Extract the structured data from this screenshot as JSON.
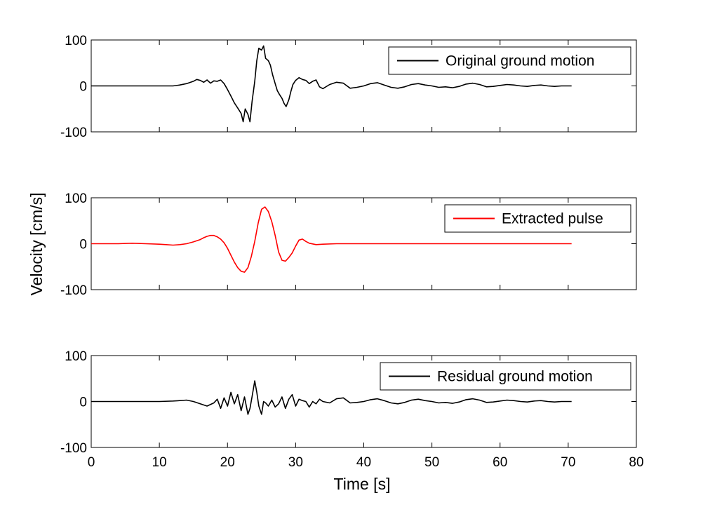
{
  "chart_data": [
    {
      "type": "line",
      "ylim": [
        -100,
        100
      ],
      "xlim": [
        0,
        80
      ],
      "yticks": [
        "100",
        "0",
        "-100"
      ],
      "series": [
        {
          "name": "Original ground motion",
          "color": "#000000",
          "x": [
            0,
            2,
            4,
            6,
            8,
            10,
            12,
            13,
            14,
            15,
            15.5,
            16,
            16.5,
            17,
            17.5,
            18,
            18.5,
            19,
            19.5,
            20,
            20.5,
            21,
            21.5,
            22,
            22.3,
            22.6,
            23,
            23.3,
            23.6,
            24,
            24.3,
            24.6,
            25,
            25.3,
            25.6,
            26,
            26.3,
            26.6,
            27,
            27.3,
            27.6,
            28,
            28.3,
            28.6,
            29,
            29.3,
            29.6,
            30,
            30.5,
            31,
            31.5,
            32,
            32.5,
            33,
            33.5,
            34,
            35,
            36,
            37,
            38,
            39,
            40,
            41,
            42,
            43,
            44,
            45,
            46,
            47,
            48,
            49,
            50,
            51,
            52,
            53,
            54,
            55,
            56,
            57,
            58,
            59,
            60,
            61,
            62,
            63,
            64,
            65,
            66,
            67,
            68,
            69,
            70,
            70.5
          ],
          "y": [
            0,
            0,
            0,
            0,
            0,
            0,
            0,
            2,
            5,
            10,
            14,
            12,
            8,
            13,
            6,
            11,
            10,
            13,
            5,
            -8,
            -22,
            -37,
            -48,
            -60,
            -78,
            -50,
            -62,
            -78,
            -35,
            10,
            55,
            82,
            78,
            87,
            60,
            55,
            45,
            25,
            5,
            -10,
            -18,
            -27,
            -38,
            -45,
            -30,
            -12,
            3,
            12,
            18,
            14,
            12,
            5,
            10,
            13,
            -2,
            -6,
            3,
            8,
            6,
            -5,
            -3,
            0,
            5,
            7,
            2,
            -3,
            -5,
            -2,
            3,
            5,
            2,
            0,
            -3,
            -2,
            -4,
            -1,
            4,
            6,
            3,
            -2,
            -1,
            1,
            3,
            2,
            0,
            -1,
            1,
            2,
            0,
            -1,
            0,
            0,
            0
          ]
        }
      ]
    },
    {
      "type": "line",
      "ylim": [
        -100,
        100
      ],
      "xlim": [
        0,
        80
      ],
      "yticks": [
        "100",
        "0",
        "-100"
      ],
      "ylabel": "Velocity [cm/s]",
      "series": [
        {
          "name": "Extracted pulse",
          "color": "#ff0000",
          "x": [
            0,
            2,
            4,
            6,
            8,
            10,
            11,
            12,
            13,
            14,
            15,
            16,
            16.5,
            17,
            17.5,
            18,
            18.5,
            19,
            19.5,
            20,
            20.5,
            21,
            21.5,
            22,
            22.5,
            23,
            23.5,
            24,
            24.5,
            25,
            25.5,
            26,
            26.5,
            27,
            27.5,
            28,
            28.5,
            29,
            29.5,
            30,
            30.5,
            31,
            31.5,
            32,
            33,
            34,
            36,
            40,
            50,
            60,
            70,
            70.5
          ],
          "y": [
            0,
            0,
            0,
            1,
            0,
            -1,
            -2,
            -3,
            -2,
            0,
            4,
            9,
            13,
            16,
            18,
            18,
            15,
            10,
            2,
            -10,
            -25,
            -40,
            -52,
            -60,
            -62,
            -52,
            -28,
            5,
            45,
            75,
            80,
            70,
            48,
            18,
            -18,
            -36,
            -38,
            -30,
            -20,
            -5,
            8,
            10,
            5,
            1,
            -2,
            -1,
            0,
            0,
            0,
            0,
            0,
            0
          ]
        }
      ]
    },
    {
      "type": "line",
      "ylim": [
        -100,
        100
      ],
      "xlim": [
        0,
        80
      ],
      "yticks": [
        "100",
        "0",
        "-100"
      ],
      "xticks": [
        "0",
        "10",
        "20",
        "30",
        "40",
        "50",
        "60",
        "70",
        "80"
      ],
      "xlabel": "Time [s]",
      "series": [
        {
          "name": "Residual ground motion",
          "color": "#000000",
          "x": [
            0,
            2,
            4,
            6,
            8,
            10,
            12,
            13,
            14,
            15,
            16,
            17,
            18,
            18.5,
            19,
            19.5,
            20,
            20.5,
            21,
            21.5,
            22,
            22.5,
            23,
            23.3,
            23.6,
            24,
            24.3,
            24.6,
            25,
            25.3,
            25.6,
            26,
            26.5,
            27,
            27.5,
            28,
            28.5,
            29,
            29.5,
            30,
            30.5,
            31,
            31.5,
            32,
            32.5,
            33,
            33.5,
            34,
            35,
            36,
            37,
            38,
            39,
            40,
            41,
            42,
            43,
            44,
            45,
            46,
            47,
            48,
            49,
            50,
            51,
            52,
            53,
            54,
            55,
            56,
            57,
            58,
            59,
            60,
            61,
            62,
            63,
            64,
            65,
            66,
            67,
            68,
            69,
            70,
            70.5
          ],
          "y": [
            0,
            0,
            0,
            0,
            0,
            0,
            1,
            2,
            3,
            0,
            -5,
            -10,
            -3,
            5,
            -15,
            8,
            -10,
            20,
            -5,
            15,
            -20,
            10,
            -28,
            -15,
            10,
            45,
            20,
            -10,
            -28,
            0,
            -3,
            -10,
            3,
            -12,
            -5,
            10,
            -15,
            5,
            15,
            -10,
            5,
            2,
            0,
            -12,
            0,
            -5,
            5,
            0,
            -3,
            6,
            8,
            -3,
            -2,
            0,
            4,
            6,
            2,
            -3,
            -5,
            -2,
            3,
            5,
            2,
            0,
            -3,
            -2,
            -4,
            -1,
            4,
            6,
            3,
            -2,
            -1,
            1,
            3,
            2,
            0,
            -1,
            1,
            2,
            0,
            -1,
            0,
            0,
            0
          ]
        }
      ]
    }
  ]
}
